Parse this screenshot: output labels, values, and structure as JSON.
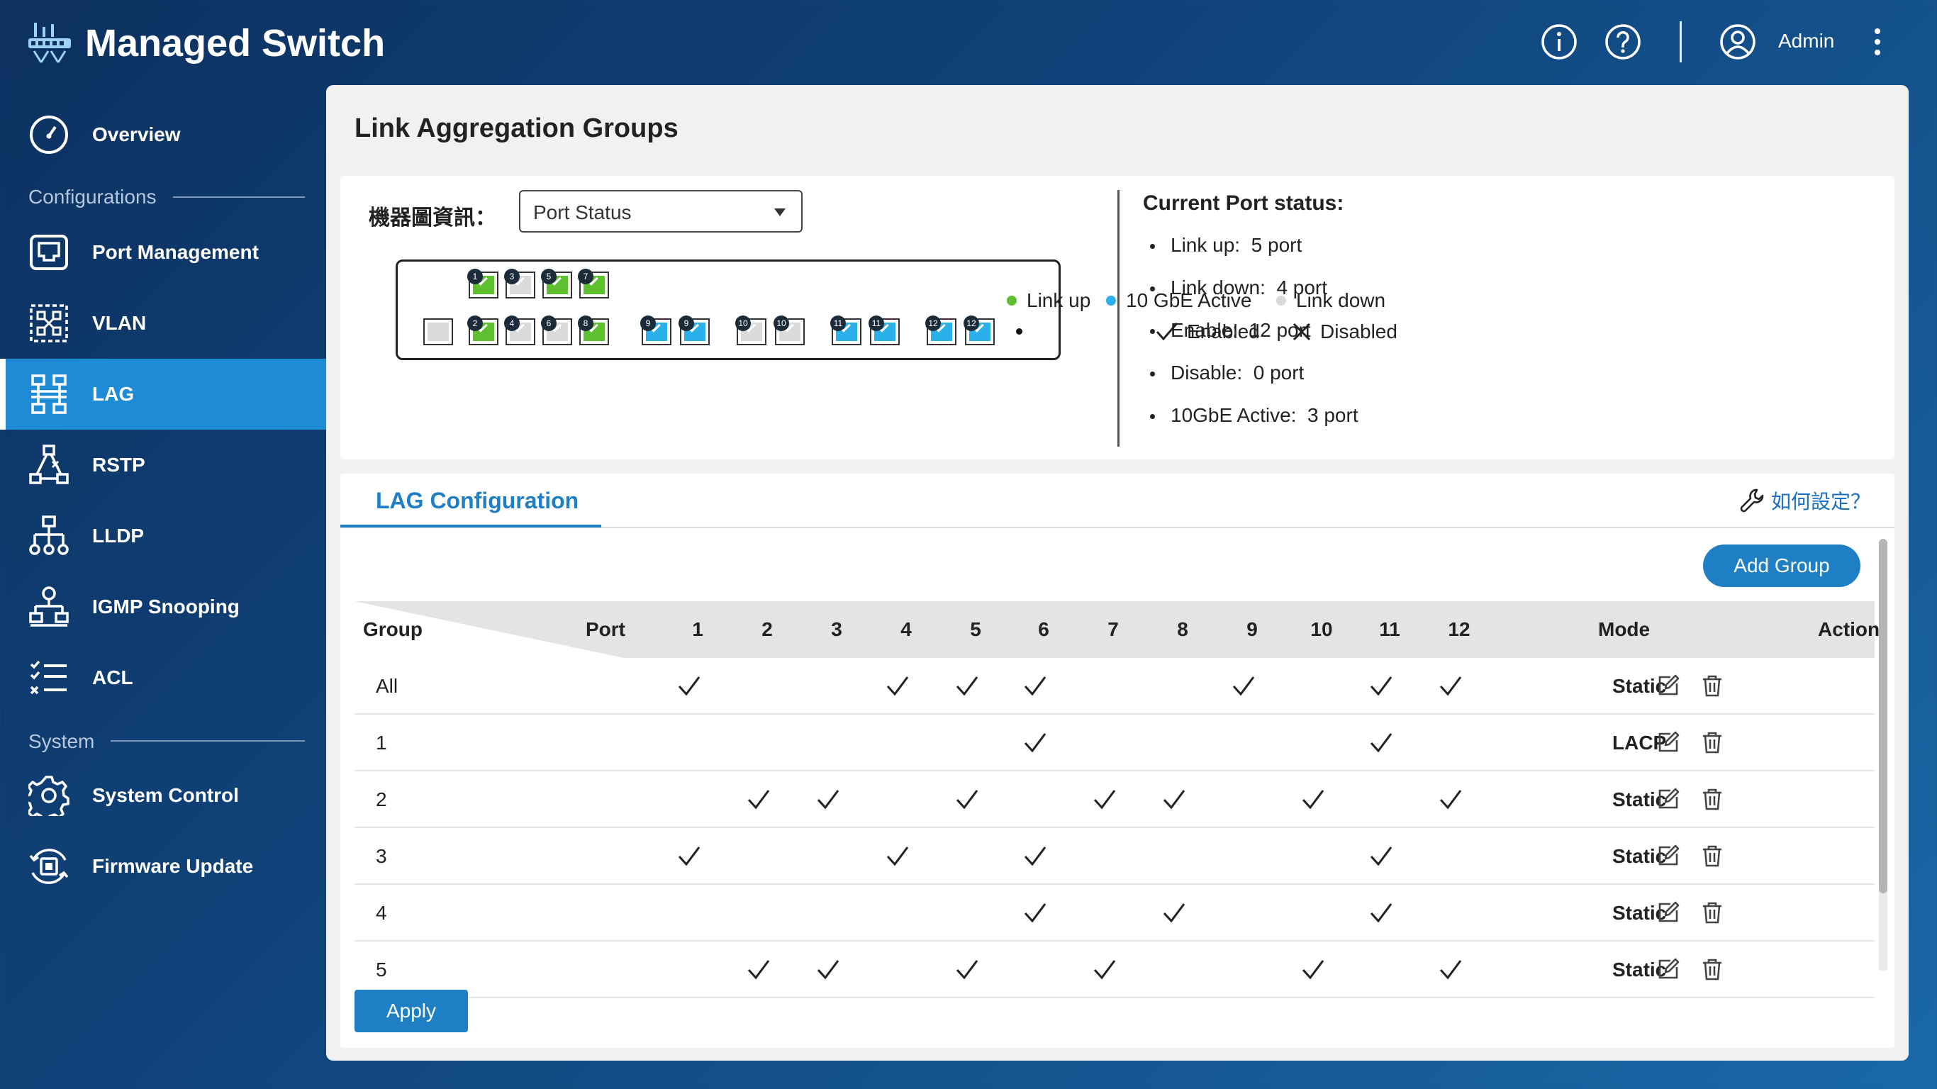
{
  "app": {
    "title": "Managed Switch",
    "user": "Admin"
  },
  "sidebar": {
    "items": [
      {
        "label": "Overview",
        "icon": "gauge-icon"
      },
      {
        "label": "Port Management",
        "icon": "port-icon"
      },
      {
        "label": "VLAN",
        "icon": "vlan-icon"
      },
      {
        "label": "LAG",
        "icon": "lag-icon",
        "active": true
      },
      {
        "label": "RSTP",
        "icon": "rstp-icon"
      },
      {
        "label": "LLDP",
        "icon": "lldp-icon"
      },
      {
        "label": "IGMP Snooping",
        "icon": "igmp-icon"
      },
      {
        "label": "ACL",
        "icon": "acl-icon"
      },
      {
        "label": "System Control",
        "icon": "gear-icon"
      },
      {
        "label": "Firmware Update",
        "icon": "firmware-icon"
      }
    ],
    "sections": {
      "configurations": "Configurations",
      "system": "System"
    }
  },
  "page": {
    "title": "Link Aggregation Groups"
  },
  "diagram": {
    "label": "機器圖資訊：",
    "select_value": "Port Status",
    "legend": {
      "link_up": "Link up",
      "gbe_active": "10 GbE Active",
      "link_down": "Link down",
      "enabled": "Enabled",
      "disabled": "Disabled"
    },
    "colors": {
      "link_up": "#5ec02e",
      "gbe_active": "#2ab0ea",
      "link_down": "#dadada"
    },
    "ports_top": [
      {
        "num": "1",
        "state": "up"
      },
      {
        "num": "3",
        "state": "down"
      },
      {
        "num": "5",
        "state": "up"
      },
      {
        "num": "7",
        "state": "up"
      }
    ],
    "ports_bottom": [
      {
        "num": "2",
        "state": "up"
      },
      {
        "num": "4",
        "state": "down"
      },
      {
        "num": "6",
        "state": "down"
      },
      {
        "num": "8",
        "state": "up"
      },
      {
        "num": "9",
        "state": "gbe"
      },
      {
        "num": "9",
        "state": "gbe"
      },
      {
        "num": "10",
        "state": "down"
      },
      {
        "num": "10",
        "state": "down"
      },
      {
        "num": "11",
        "state": "gbe"
      },
      {
        "num": "11",
        "state": "gbe"
      },
      {
        "num": "12",
        "state": "gbe"
      },
      {
        "num": "12",
        "state": "gbe"
      }
    ]
  },
  "port_status": {
    "title": "Current Port status:",
    "items": [
      {
        "label": "Link up:",
        "value": "5 port"
      },
      {
        "label": "Link down:",
        "value": "4 port"
      },
      {
        "label": "Enable:",
        "value": "12 port"
      },
      {
        "label": "Disable:",
        "value": "0 port"
      },
      {
        "label": "10GbE Active:",
        "value": "3 port"
      }
    ]
  },
  "lag": {
    "tab": "LAG Configuration",
    "howto": "如何設定？",
    "add_group": "Add Group",
    "apply": "Apply",
    "headers": {
      "group": "Group",
      "port": "Port",
      "mode": "Mode",
      "action": "Action"
    },
    "ports": [
      "1",
      "2",
      "3",
      "4",
      "5",
      "6",
      "7",
      "8",
      "9",
      "10",
      "11",
      "12"
    ],
    "rows": [
      {
        "group": "All",
        "checks": [
          1,
          4,
          5,
          6,
          9,
          11,
          12
        ],
        "mode": "Static"
      },
      {
        "group": "1",
        "checks": [
          6,
          11
        ],
        "mode": "LACP"
      },
      {
        "group": "2",
        "checks": [
          2,
          3,
          5,
          7,
          8,
          10,
          12
        ],
        "mode": "Static"
      },
      {
        "group": "3",
        "checks": [
          1,
          4,
          6,
          11
        ],
        "mode": "Static"
      },
      {
        "group": "4",
        "checks": [
          6,
          8,
          11
        ],
        "mode": "Static"
      },
      {
        "group": "5",
        "checks": [
          2,
          3,
          5,
          7,
          10,
          12
        ],
        "mode": "Static"
      }
    ]
  }
}
